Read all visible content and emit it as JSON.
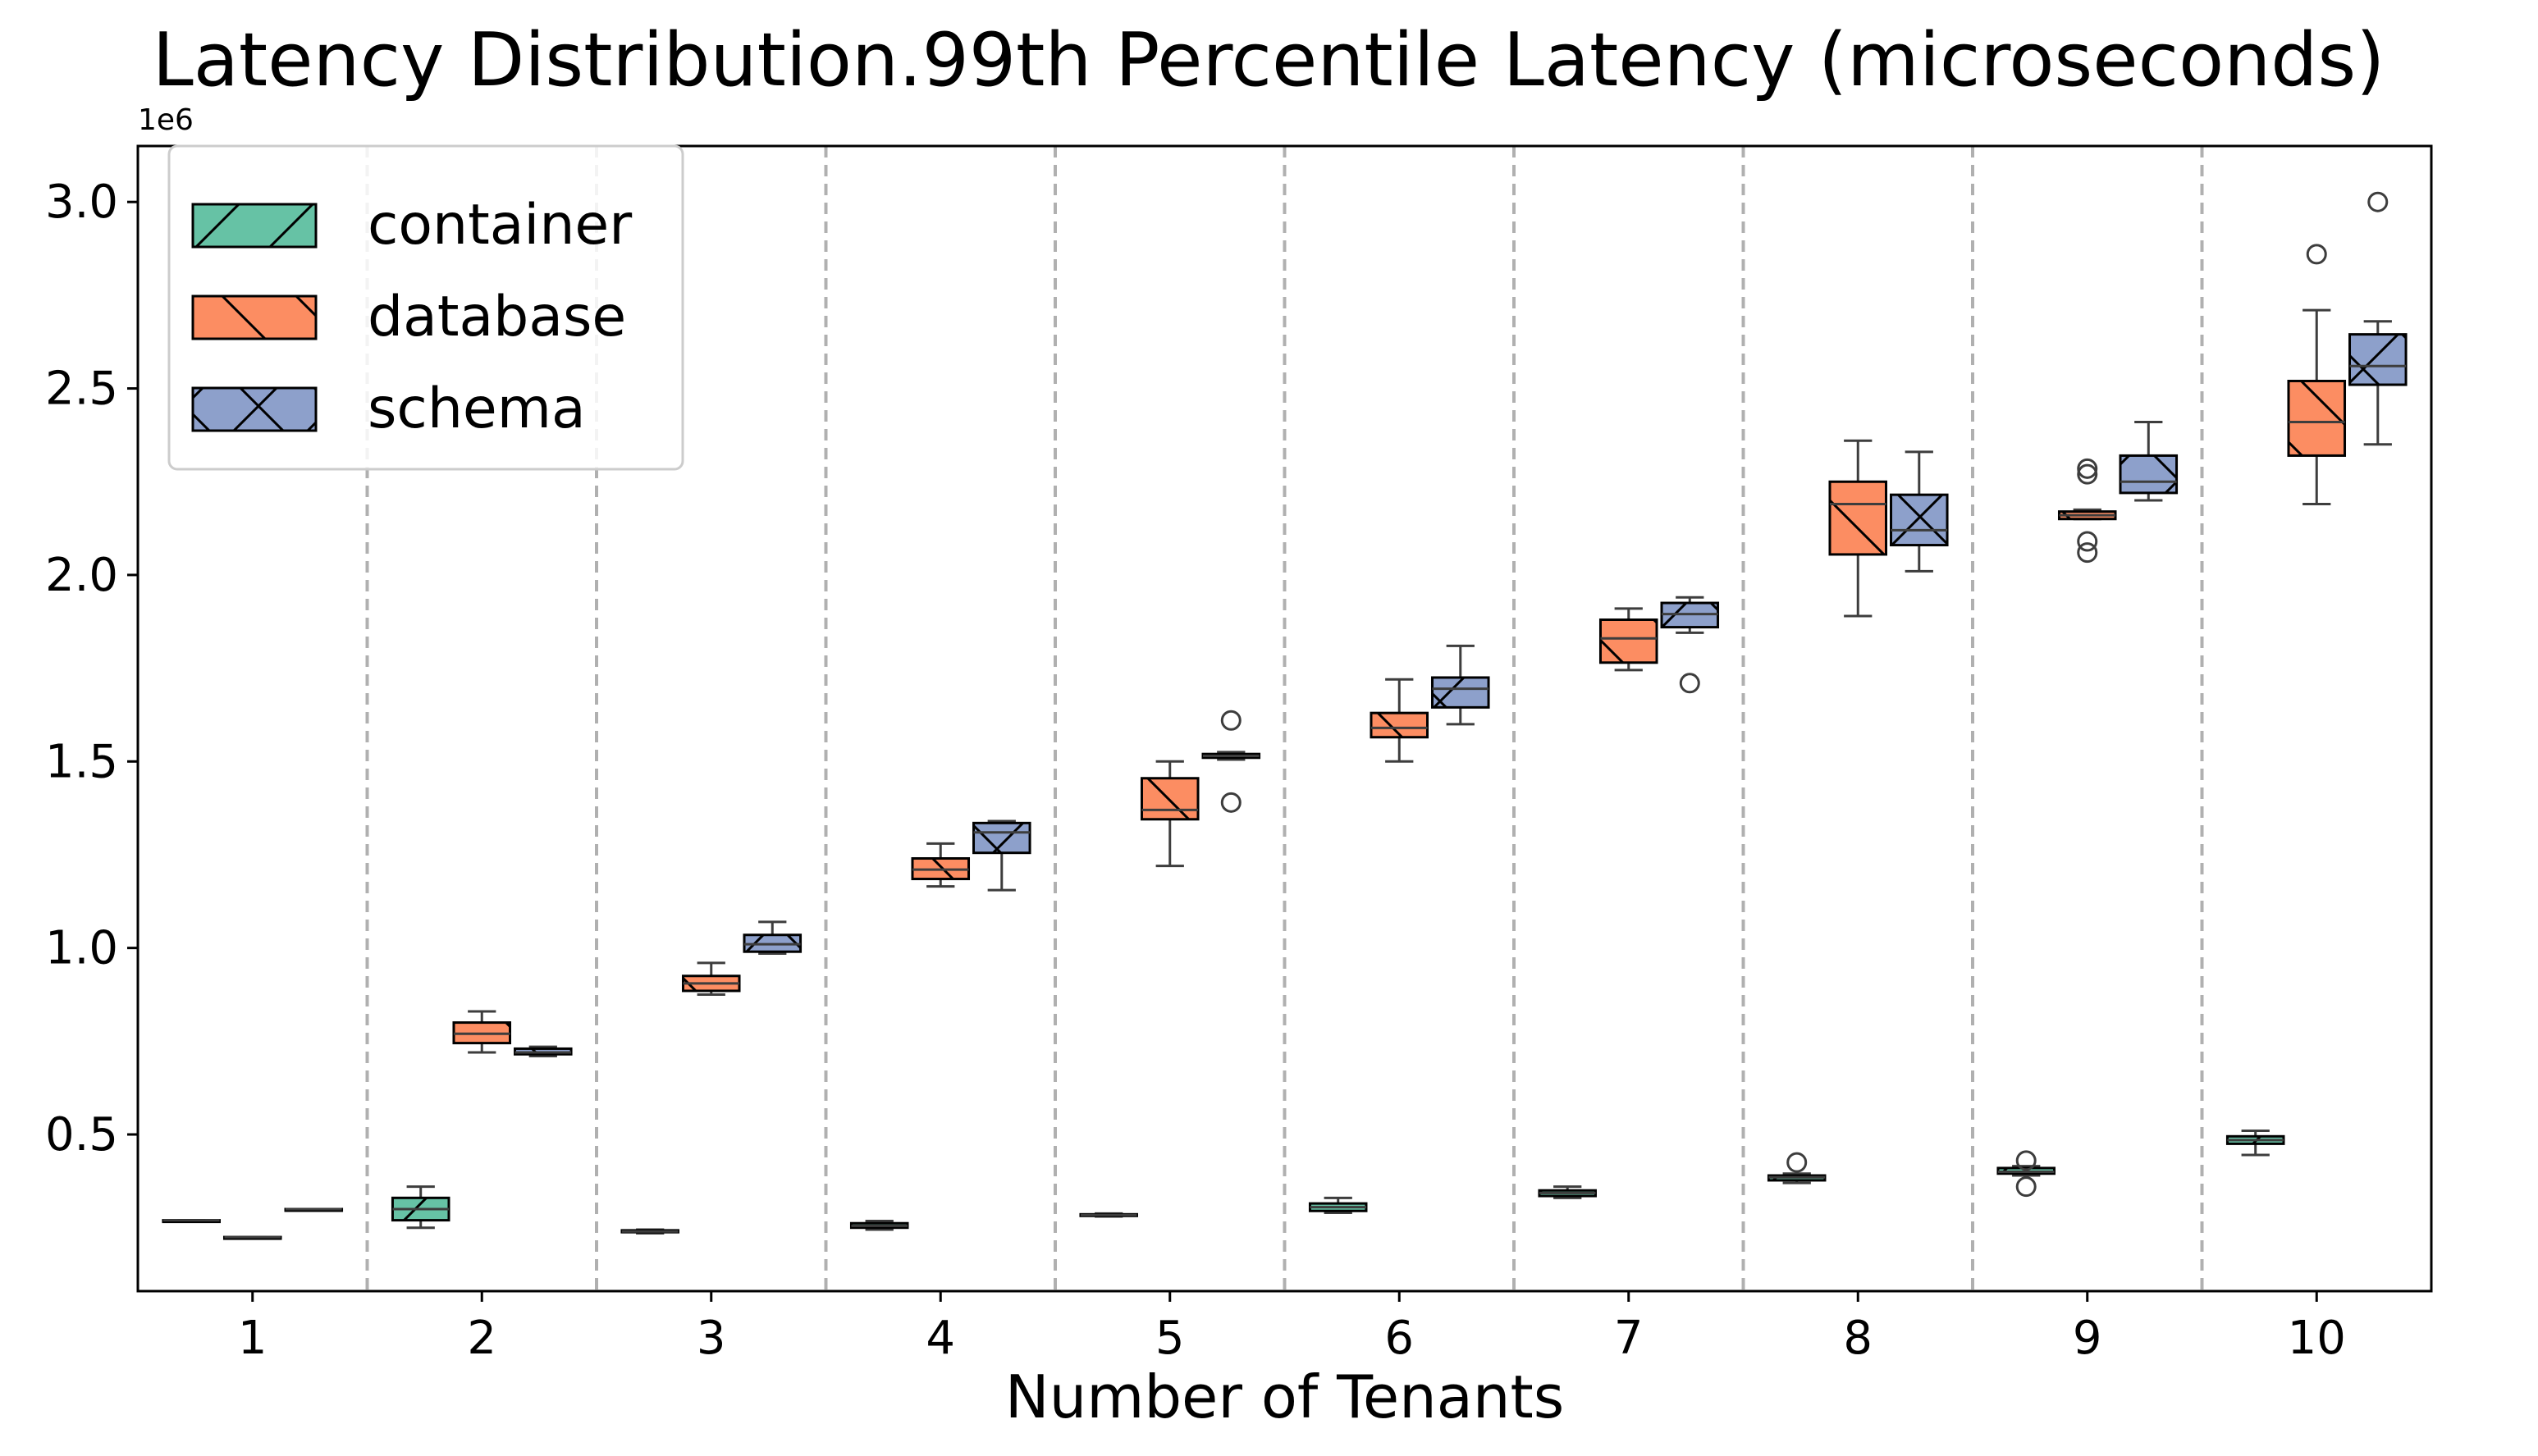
{
  "chart_data": {
    "type": "box",
    "title": "Latency Distribution.99th Percentile Latency (microseconds)",
    "xlabel": "Number of Tenants",
    "ylabel": "",
    "y_scale_offset": "1e6",
    "y_ticks": [
      0.5,
      1.0,
      1.5,
      2.0,
      2.5,
      3.0
    ],
    "y_tick_labels": [
      "0.5",
      "1.0",
      "1.5",
      "2.0",
      "2.5",
      "3.0"
    ],
    "ylim": [
      0.08,
      3.15
    ],
    "categories": [
      "1",
      "2",
      "3",
      "4",
      "5",
      "6",
      "7",
      "8",
      "9",
      "10"
    ],
    "legend_position": "upper-left",
    "grid": "vertical dashed separators between categories",
    "series": [
      {
        "name": "container",
        "color": "#66c2a5",
        "hatch": "/",
        "boxes": [
          {
            "whislo": 0.27,
            "q1": 0.27,
            "med": 0.27,
            "q3": 0.27,
            "whishi": 0.27,
            "fliers": []
          },
          {
            "whislo": 0.25,
            "q1": 0.27,
            "med": 0.3,
            "q3": 0.33,
            "whishi": 0.36,
            "fliers": []
          },
          {
            "whislo": 0.235,
            "q1": 0.238,
            "med": 0.24,
            "q3": 0.243,
            "whishi": 0.245,
            "fliers": []
          },
          {
            "whislo": 0.245,
            "q1": 0.25,
            "med": 0.255,
            "q3": 0.262,
            "whishi": 0.268,
            "fliers": []
          },
          {
            "whislo": 0.28,
            "q1": 0.282,
            "med": 0.284,
            "q3": 0.286,
            "whishi": 0.288,
            "fliers": []
          },
          {
            "whislo": 0.29,
            "q1": 0.295,
            "med": 0.305,
            "q3": 0.315,
            "whishi": 0.33,
            "fliers": []
          },
          {
            "whislo": 0.33,
            "q1": 0.335,
            "med": 0.343,
            "q3": 0.35,
            "whishi": 0.36,
            "fliers": []
          },
          {
            "whislo": 0.37,
            "q1": 0.377,
            "med": 0.385,
            "q3": 0.39,
            "whishi": 0.395,
            "fliers": [
              0.425
            ]
          },
          {
            "whislo": 0.39,
            "q1": 0.395,
            "med": 0.4,
            "q3": 0.41,
            "whishi": 0.415,
            "fliers": [
              0.36,
              0.43
            ]
          },
          {
            "whislo": 0.445,
            "q1": 0.475,
            "med": 0.485,
            "q3": 0.495,
            "whishi": 0.51,
            "fliers": []
          }
        ]
      },
      {
        "name": "database",
        "color": "#fc8d62",
        "hatch": "\\",
        "boxes": [
          {
            "whislo": 0.225,
            "q1": 0.225,
            "med": 0.225,
            "q3": 0.225,
            "whishi": 0.225,
            "fliers": []
          },
          {
            "whislo": 0.72,
            "q1": 0.745,
            "med": 0.77,
            "q3": 0.8,
            "whishi": 0.83,
            "fliers": []
          },
          {
            "whislo": 0.875,
            "q1": 0.885,
            "med": 0.905,
            "q3": 0.925,
            "whishi": 0.96,
            "fliers": []
          },
          {
            "whislo": 1.165,
            "q1": 1.185,
            "med": 1.21,
            "q3": 1.24,
            "whishi": 1.28,
            "fliers": []
          },
          {
            "whislo": 1.22,
            "q1": 1.345,
            "med": 1.37,
            "q3": 1.455,
            "whishi": 1.5,
            "fliers": []
          },
          {
            "whislo": 1.5,
            "q1": 1.565,
            "med": 1.59,
            "q3": 1.63,
            "whishi": 1.72,
            "fliers": []
          },
          {
            "whislo": 1.745,
            "q1": 1.765,
            "med": 1.83,
            "q3": 1.88,
            "whishi": 1.91,
            "fliers": []
          },
          {
            "whislo": 1.89,
            "q1": 2.055,
            "med": 2.19,
            "q3": 2.25,
            "whishi": 2.36,
            "fliers": []
          },
          {
            "whislo": 2.15,
            "q1": 2.15,
            "med": 2.16,
            "q3": 2.17,
            "whishi": 2.175,
            "fliers": [
              2.06,
              2.09,
              2.27,
              2.285
            ]
          },
          {
            "whislo": 2.19,
            "q1": 2.32,
            "med": 2.41,
            "q3": 2.52,
            "whishi": 2.71,
            "fliers": [
              2.86
            ]
          }
        ]
      },
      {
        "name": "schema",
        "color": "#8da0cb",
        "hatch": "x",
        "boxes": [
          {
            "whislo": 0.3,
            "q1": 0.3,
            "med": 0.3,
            "q3": 0.3,
            "whishi": 0.3,
            "fliers": []
          },
          {
            "whislo": 0.71,
            "q1": 0.715,
            "med": 0.72,
            "q3": 0.73,
            "whishi": 0.735,
            "fliers": []
          },
          {
            "whislo": 0.985,
            "q1": 0.99,
            "med": 1.01,
            "q3": 1.035,
            "whishi": 1.07,
            "fliers": []
          },
          {
            "whislo": 1.155,
            "q1": 1.255,
            "med": 1.31,
            "q3": 1.335,
            "whishi": 1.34,
            "fliers": []
          },
          {
            "whislo": 1.505,
            "q1": 1.51,
            "med": 1.515,
            "q3": 1.52,
            "whishi": 1.525,
            "fliers": [
              1.39,
              1.61
            ]
          },
          {
            "whislo": 1.6,
            "q1": 1.645,
            "med": 1.695,
            "q3": 1.725,
            "whishi": 1.81,
            "fliers": []
          },
          {
            "whislo": 1.845,
            "q1": 1.86,
            "med": 1.895,
            "q3": 1.925,
            "whishi": 1.94,
            "fliers": [
              1.71
            ]
          },
          {
            "whislo": 2.01,
            "q1": 2.08,
            "med": 2.12,
            "q3": 2.215,
            "whishi": 2.33,
            "fliers": []
          },
          {
            "whislo": 2.2,
            "q1": 2.22,
            "med": 2.25,
            "q3": 2.32,
            "whishi": 2.41,
            "fliers": []
          },
          {
            "whislo": 2.35,
            "q1": 2.51,
            "med": 2.56,
            "q3": 2.645,
            "whishi": 2.68,
            "fliers": [
              3.0
            ]
          }
        ]
      }
    ]
  }
}
